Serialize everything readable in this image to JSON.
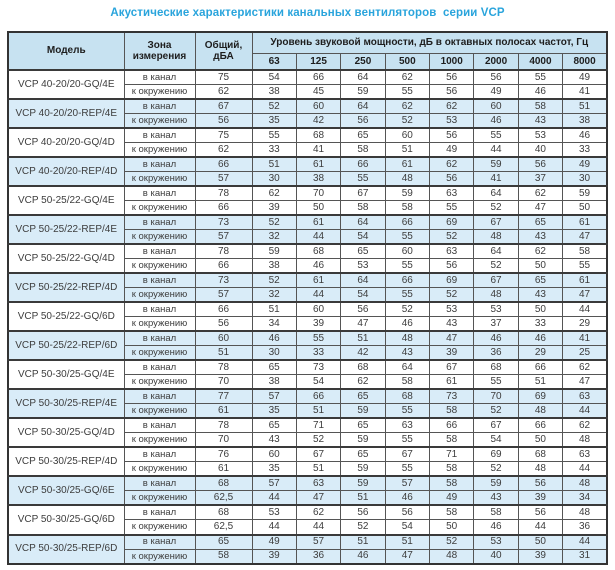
{
  "title": "Акустические характеристики канальных вентиляторов  серии VCP",
  "colors": {
    "accent_title": "#29a4dc",
    "header_bg": "#c7e2f1",
    "row_tint": "#d9ecf8",
    "border": "#555555",
    "thick_border": "#333333"
  },
  "table": {
    "headers": {
      "model": "Модель",
      "zone": "Зона измерения",
      "total": "Общий, дБА",
      "spectrum": "Уровень звуковой мощности, дБ в октавных полосах частот, Гц",
      "frequencies": [
        "63",
        "125",
        "250",
        "500",
        "1000",
        "2000",
        "4000",
        "8000"
      ]
    },
    "zone_labels": {
      "duct": "в канал",
      "ambient": "к окружению"
    },
    "groups": [
      {
        "model": "VCP 40-20/20-GQ/4E",
        "shaded": false,
        "rows": [
          {
            "zone": "в канал",
            "total": "75",
            "values": [
              "54",
              "66",
              "64",
              "62",
              "56",
              "56",
              "55",
              "49"
            ]
          },
          {
            "zone": "к окружению",
            "total": "62",
            "values": [
              "38",
              "45",
              "59",
              "55",
              "56",
              "49",
              "46",
              "41"
            ]
          }
        ]
      },
      {
        "model": "VCP 40-20/20-REP/4E",
        "shaded": true,
        "rows": [
          {
            "zone": "в канал",
            "total": "67",
            "values": [
              "52",
              "60",
              "64",
              "62",
              "62",
              "60",
              "58",
              "51"
            ]
          },
          {
            "zone": "к окружению",
            "total": "56",
            "values": [
              "35",
              "42",
              "56",
              "52",
              "53",
              "46",
              "43",
              "38"
            ]
          }
        ]
      },
      {
        "model": "VCP 40-20/20-GQ/4D",
        "shaded": false,
        "rows": [
          {
            "zone": "в канал",
            "total": "75",
            "values": [
              "55",
              "68",
              "65",
              "60",
              "56",
              "55",
              "53",
              "46"
            ]
          },
          {
            "zone": "к окружению",
            "total": "62",
            "values": [
              "33",
              "41",
              "58",
              "51",
              "49",
              "44",
              "40",
              "33"
            ]
          }
        ]
      },
      {
        "model": "VCP 40-20/20-REP/4D",
        "shaded": true,
        "rows": [
          {
            "zone": "в канал",
            "total": "66",
            "values": [
              "51",
              "61",
              "66",
              "61",
              "62",
              "59",
              "56",
              "49"
            ]
          },
          {
            "zone": "к окружению",
            "total": "57",
            "values": [
              "30",
              "38",
              "55",
              "48",
              "56",
              "41",
              "37",
              "30"
            ]
          }
        ]
      },
      {
        "model": "VCP 50-25/22-GQ/4E",
        "shaded": false,
        "rows": [
          {
            "zone": "в канал",
            "total": "78",
            "values": [
              "62",
              "70",
              "67",
              "59",
              "63",
              "64",
              "62",
              "59"
            ]
          },
          {
            "zone": "к окружению",
            "total": "66",
            "values": [
              "39",
              "50",
              "58",
              "58",
              "55",
              "52",
              "47",
              "50"
            ]
          }
        ]
      },
      {
        "model": "VCP 50-25/22-REP/4E",
        "shaded": true,
        "rows": [
          {
            "zone": "в канал",
            "total": "73",
            "values": [
              "52",
              "61",
              "64",
              "66",
              "69",
              "67",
              "65",
              "61"
            ]
          },
          {
            "zone": "к окружению",
            "total": "57",
            "values": [
              "32",
              "44",
              "54",
              "55",
              "52",
              "48",
              "43",
              "47"
            ]
          }
        ]
      },
      {
        "model": "VCP 50-25/22-GQ/4D",
        "shaded": false,
        "rows": [
          {
            "zone": "в канал",
            "total": "78",
            "values": [
              "59",
              "68",
              "65",
              "60",
              "63",
              "64",
              "62",
              "58"
            ]
          },
          {
            "zone": "к окружению",
            "total": "66",
            "values": [
              "38",
              "46",
              "53",
              "55",
              "56",
              "52",
              "50",
              "55"
            ]
          }
        ]
      },
      {
        "model": "VCP 50-25/22-REP/4D",
        "shaded": true,
        "rows": [
          {
            "zone": "в канал",
            "total": "73",
            "values": [
              "52",
              "61",
              "64",
              "66",
              "69",
              "67",
              "65",
              "61"
            ]
          },
          {
            "zone": "к окружению",
            "total": "57",
            "values": [
              "32",
              "44",
              "54",
              "55",
              "52",
              "48",
              "43",
              "47"
            ]
          }
        ]
      },
      {
        "model": "VCP 50-25/22-GQ/6D",
        "shaded": false,
        "rows": [
          {
            "zone": "в канал",
            "total": "66",
            "values": [
              "51",
              "60",
              "56",
              "52",
              "53",
              "53",
              "50",
              "44"
            ]
          },
          {
            "zone": "к окружению",
            "total": "56",
            "values": [
              "34",
              "39",
              "47",
              "46",
              "43",
              "37",
              "33",
              "29"
            ]
          }
        ]
      },
      {
        "model": "VCP 50-25/22-REP/6D",
        "shaded": true,
        "rows": [
          {
            "zone": "в канал",
            "total": "60",
            "values": [
              "46",
              "55",
              "51",
              "48",
              "47",
              "46",
              "46",
              "41"
            ]
          },
          {
            "zone": "к окружению",
            "total": "51",
            "values": [
              "30",
              "33",
              "42",
              "43",
              "39",
              "36",
              "29",
              "25"
            ]
          }
        ]
      },
      {
        "model": "VCP 50-30/25-GQ/4E",
        "shaded": false,
        "rows": [
          {
            "zone": "в канал",
            "total": "78",
            "values": [
              "65",
              "73",
              "68",
              "64",
              "67",
              "68",
              "66",
              "62"
            ]
          },
          {
            "zone": "к окружению",
            "total": "70",
            "values": [
              "38",
              "54",
              "62",
              "58",
              "61",
              "55",
              "51",
              "47"
            ]
          }
        ]
      },
      {
        "model": "VCP 50-30/25-REP/4E",
        "shaded": true,
        "rows": [
          {
            "zone": "в канал",
            "total": "77",
            "values": [
              "57",
              "66",
              "65",
              "68",
              "73",
              "70",
              "69",
              "63"
            ]
          },
          {
            "zone": "к окружению",
            "total": "61",
            "values": [
              "35",
              "51",
              "59",
              "55",
              "58",
              "52",
              "48",
              "44"
            ]
          }
        ]
      },
      {
        "model": "VCP 50-30/25-GQ/4D",
        "shaded": false,
        "rows": [
          {
            "zone": "в канал",
            "total": "78",
            "values": [
              "65",
              "71",
              "65",
              "63",
              "66",
              "67",
              "66",
              "62"
            ]
          },
          {
            "zone": "к окружению",
            "total": "70",
            "values": [
              "43",
              "52",
              "59",
              "55",
              "58",
              "54",
              "50",
              "48"
            ]
          }
        ]
      },
      {
        "model": "VCP 50-30/25-REP/4D",
        "shaded": false,
        "rows": [
          {
            "zone": "в канал",
            "total": "76",
            "values": [
              "60",
              "67",
              "65",
              "67",
              "71",
              "69",
              "68",
              "63"
            ]
          },
          {
            "zone": "к окружению",
            "total": "61",
            "values": [
              "35",
              "51",
              "59",
              "55",
              "58",
              "52",
              "48",
              "44"
            ]
          }
        ]
      },
      {
        "model": "VCP 50-30/25-GQ/6E",
        "shaded": true,
        "rows": [
          {
            "zone": "в канал",
            "total": "68",
            "values": [
              "57",
              "63",
              "59",
              "57",
              "58",
              "59",
              "56",
              "48"
            ]
          },
          {
            "zone": "к окружению",
            "total": "62,5",
            "values": [
              "44",
              "47",
              "51",
              "46",
              "49",
              "43",
              "39",
              "34"
            ]
          }
        ]
      },
      {
        "model": "VCP 50-30/25-GQ/6D",
        "shaded": false,
        "rows": [
          {
            "zone": "в канал",
            "total": "68",
            "values": [
              "53",
              "62",
              "56",
              "56",
              "58",
              "58",
              "56",
              "48"
            ]
          },
          {
            "zone": "к окружению",
            "total": "62,5",
            "values": [
              "44",
              "44",
              "52",
              "54",
              "50",
              "46",
              "44",
              "36"
            ]
          }
        ]
      },
      {
        "model": "VCP 50-30/25-REP/6D",
        "shaded": true,
        "rows": [
          {
            "zone": "в канал",
            "total": "65",
            "values": [
              "49",
              "57",
              "51",
              "51",
              "52",
              "53",
              "50",
              "44"
            ]
          },
          {
            "zone": "к окружению",
            "total": "58",
            "values": [
              "39",
              "36",
              "46",
              "47",
              "48",
              "40",
              "39",
              "31"
            ]
          }
        ]
      }
    ]
  }
}
